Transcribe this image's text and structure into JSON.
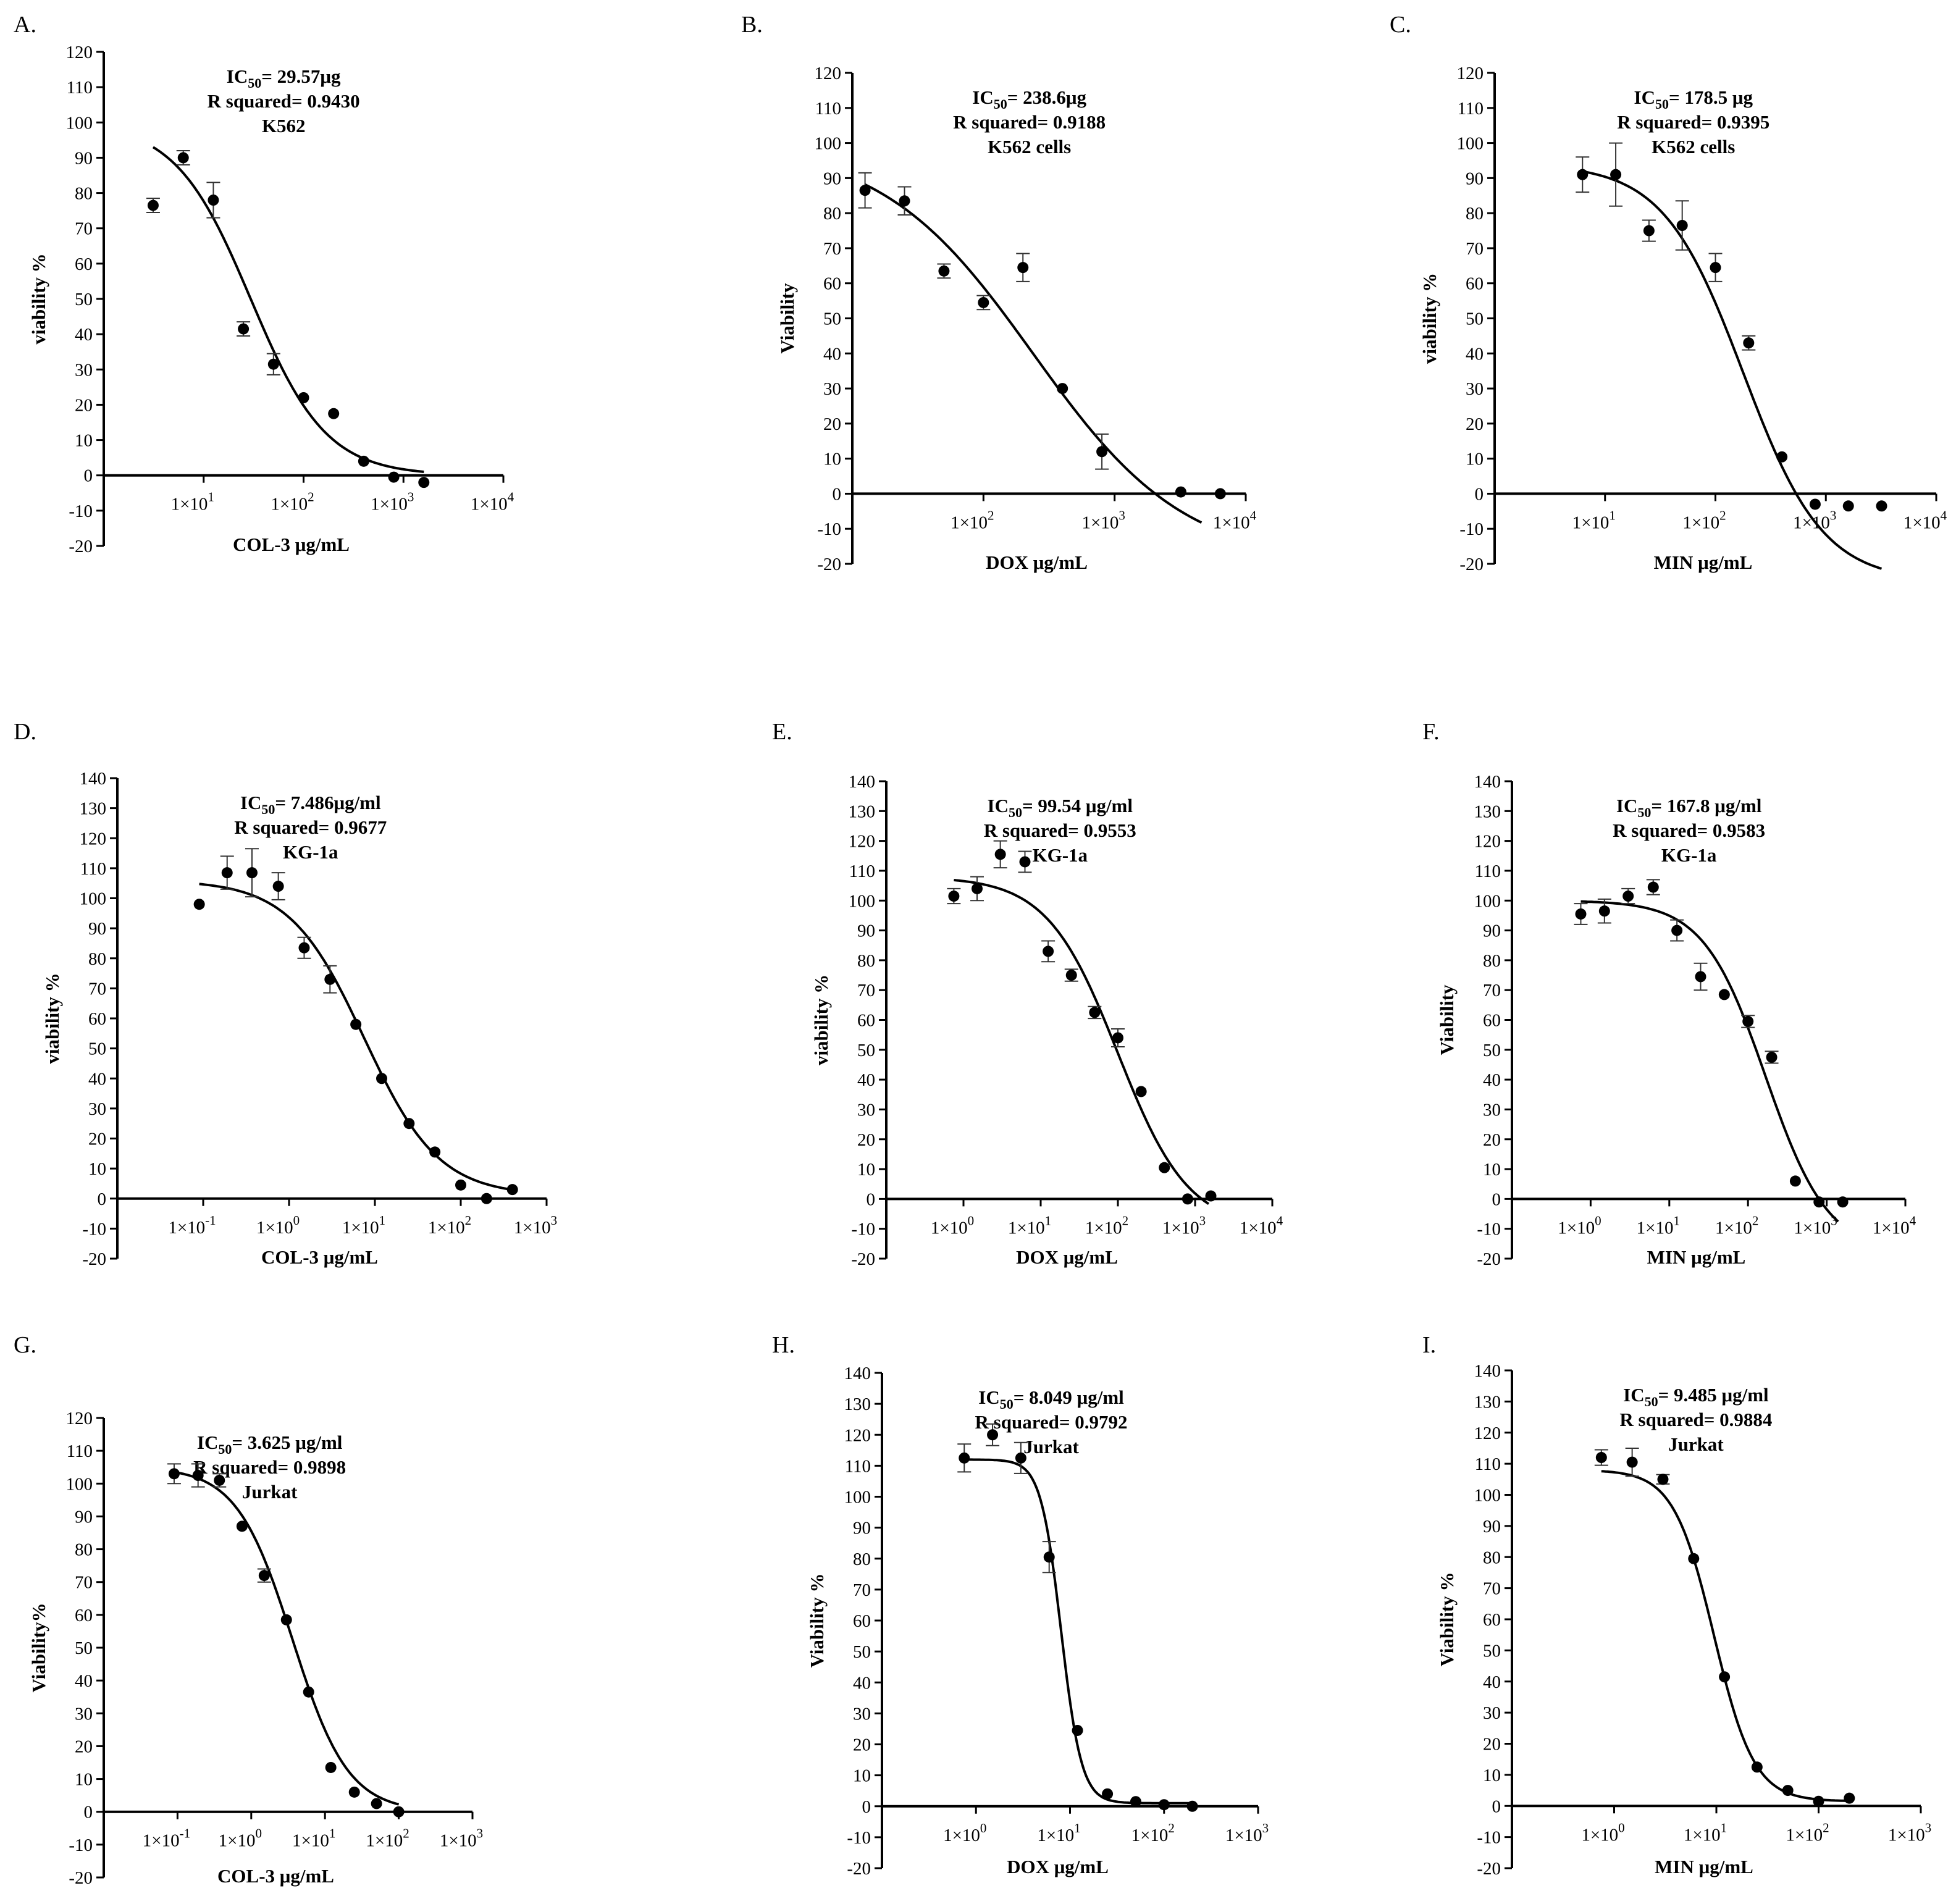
{
  "chart_data": [
    {
      "letter": "A.",
      "type": "scatter",
      "ylabel": "viability %",
      "xlabel": "COL-3 μg/mL",
      "annotation": {
        "ic50_prefix": "IC",
        "ic50_sub": "50",
        "ic50_value": "= 29.57μg",
        "r_squared": "R squared= 0.9430",
        "cell_line": "K562"
      },
      "x_scale": "log10",
      "xlim_log10": [
        0,
        4
      ],
      "x_ticks": [
        {
          "base": "1×10",
          "exp": "1",
          "log10": 1
        },
        {
          "base": "1×10",
          "exp": "2",
          "log10": 2
        },
        {
          "base": "1×10",
          "exp": "3",
          "log10": 3
        },
        {
          "base": "1×10",
          "exp": "4",
          "log10": 4
        }
      ],
      "ylim": [
        -20,
        120
      ],
      "y_ticks": [
        120,
        110,
        100,
        90,
        80,
        70,
        60,
        50,
        40,
        30,
        20,
        10,
        0,
        -10,
        -20
      ],
      "x": [
        3.12,
        6.25,
        12.5,
        25,
        50,
        100,
        200,
        400,
        800,
        1600
      ],
      "y": [
        76.5,
        90,
        78,
        41.5,
        31.5,
        22,
        17.5,
        4,
        -0.5,
        -2
      ],
      "error": [
        2,
        2,
        5,
        2,
        3,
        0,
        0,
        0,
        0,
        0
      ],
      "fit_4pl": {
        "top": 100,
        "bottom": 0,
        "ic50": 29.57,
        "hill": 1.15,
        "x_start": 3.12,
        "x_end": 1600
      }
    },
    {
      "letter": "B.",
      "type": "scatter",
      "ylabel": "Viability",
      "xlabel": "DOX μg/mL",
      "annotation": {
        "ic50_prefix": "IC",
        "ic50_sub": "50",
        "ic50_value": "= 238.6μg",
        "r_squared": "R squared= 0.9188",
        "cell_line": "K562 cells"
      },
      "x_scale": "log10",
      "xlim_log10": [
        1,
        4
      ],
      "x_ticks": [
        {
          "base": "1×10",
          "exp": "2",
          "log10": 2
        },
        {
          "base": "1×10",
          "exp": "3",
          "log10": 3
        },
        {
          "base": "1×10",
          "exp": "4",
          "log10": 4
        }
      ],
      "ylim": [
        -20,
        120
      ],
      "y_ticks": [
        120,
        110,
        100,
        90,
        80,
        70,
        60,
        50,
        40,
        30,
        20,
        10,
        0,
        -10,
        -20
      ],
      "x": [
        12.5,
        25,
        50,
        100,
        200,
        400,
        800,
        3200,
        6400
      ],
      "y": [
        86.5,
        83.5,
        63.5,
        54.5,
        64.5,
        30,
        12,
        0.5,
        0
      ],
      "error": [
        5,
        4,
        2,
        2,
        4,
        0,
        5,
        0,
        0
      ],
      "fit_4pl": {
        "top": 100,
        "bottom": -20,
        "ic50": 238.6,
        "hill": 0.75,
        "x_start": 12.5,
        "x_end": 4600
      }
    },
    {
      "letter": "C.",
      "type": "scatter",
      "ylabel": "viability %",
      "xlabel": "MIN μg/mL",
      "annotation": {
        "ic50_prefix": "IC",
        "ic50_sub": "50",
        "ic50_value": "= 178.5 μg",
        "r_squared": "R squared= 0.9395",
        "cell_line": "K562 cells"
      },
      "x_scale": "log10",
      "xlim_log10": [
        0,
        4
      ],
      "x_ticks": [
        {
          "base": "1×10",
          "exp": "1",
          "log10": 1
        },
        {
          "base": "1×10",
          "exp": "2",
          "log10": 2
        },
        {
          "base": "1×10",
          "exp": "3",
          "log10": 3
        },
        {
          "base": "1×10",
          "exp": "4",
          "log10": 4
        }
      ],
      "ylim": [
        -20,
        120
      ],
      "y_ticks": [
        120,
        110,
        100,
        90,
        80,
        70,
        60,
        50,
        40,
        30,
        20,
        10,
        0,
        -10,
        -20
      ],
      "x": [
        6.25,
        12.5,
        25,
        50,
        100,
        200,
        400,
        800,
        1600,
        3200
      ],
      "y": [
        91,
        91,
        75,
        76.5,
        64.5,
        43,
        10.5,
        -3,
        -3.5,
        -3.5
      ],
      "error": [
        5,
        9,
        3,
        7,
        4,
        2,
        0,
        0,
        0,
        0
      ],
      "fit_4pl": {
        "top": 94,
        "bottom": -25,
        "ic50": 178.5,
        "hill": 1.2,
        "x_start": 6.25,
        "x_end": 3200
      }
    },
    {
      "letter": "D.",
      "type": "scatter",
      "ylabel": "viability %",
      "xlabel": "COL-3 μg/mL",
      "annotation": {
        "ic50_prefix": "IC",
        "ic50_sub": "50",
        "ic50_value": "= 7.486μg/ml",
        "r_squared": "R squared= 0.9677",
        "cell_line": "KG-1a"
      },
      "x_scale": "log10",
      "xlim_log10": [
        -2,
        3
      ],
      "x_ticks": [
        {
          "base": "1×10",
          "exp": "-1",
          "log10": -1
        },
        {
          "base": "1×10",
          "exp": "0",
          "log10": 0
        },
        {
          "base": "1×10",
          "exp": "1",
          "log10": 1
        },
        {
          "base": "1×10",
          "exp": "2",
          "log10": 2
        },
        {
          "base": "1×10",
          "exp": "3",
          "log10": 3
        }
      ],
      "ylim": [
        -20,
        140
      ],
      "y_ticks": [
        140,
        130,
        120,
        110,
        100,
        90,
        80,
        70,
        60,
        50,
        40,
        30,
        20,
        10,
        0,
        -10,
        -20
      ],
      "x": [
        0.09,
        0.19,
        0.37,
        0.75,
        1.5,
        3,
        6,
        12,
        25,
        50,
        100,
        200,
        400
      ],
      "y": [
        98,
        108.5,
        108.5,
        104,
        83.5,
        73,
        58,
        40,
        25,
        15.5,
        4.5,
        0,
        3
      ],
      "error": [
        0,
        5.5,
        8,
        4.5,
        3.5,
        4.5,
        0,
        0,
        0,
        0,
        0,
        0,
        0
      ],
      "fit_4pl": {
        "top": 106,
        "bottom": 1,
        "ic50": 7.486,
        "hill": 1.0,
        "x_start": 0.09,
        "x_end": 400
      }
    },
    {
      "letter": "E.",
      "type": "scatter",
      "ylabel": "viability %",
      "xlabel": "DOX μg/mL",
      "annotation": {
        "ic50_prefix": "IC",
        "ic50_sub": "50",
        "ic50_value": "= 99.54 μg/ml",
        "r_squared": "R squared= 0.9553",
        "cell_line": "KG-1a"
      },
      "x_scale": "log10",
      "xlim_log10": [
        -1,
        4
      ],
      "x_ticks": [
        {
          "base": "1×10",
          "exp": "0",
          "log10": 0
        },
        {
          "base": "1×10",
          "exp": "1",
          "log10": 1
        },
        {
          "base": "1×10",
          "exp": "2",
          "log10": 2
        },
        {
          "base": "1×10",
          "exp": "3",
          "log10": 3
        },
        {
          "base": "1×10",
          "exp": "4",
          "log10": 4
        }
      ],
      "ylim": [
        -20,
        140
      ],
      "y_ticks": [
        140,
        130,
        120,
        110,
        100,
        90,
        80,
        70,
        60,
        50,
        40,
        30,
        20,
        10,
        0,
        -10,
        -20
      ],
      "x": [
        0.75,
        1.5,
        3,
        6.25,
        12.5,
        25,
        50,
        100,
        200,
        400,
        800,
        1600
      ],
      "y": [
        101.5,
        104,
        115.5,
        113,
        83,
        75,
        62.5,
        54,
        36,
        10.5,
        0,
        1
      ],
      "error": [
        2.5,
        4,
        4.5,
        3.5,
        3.5,
        2,
        2,
        3,
        0,
        0,
        0,
        0
      ],
      "fit_4pl": {
        "top": 108,
        "bottom": -10,
        "ic50": 99.54,
        "hill": 0.95,
        "x_start": 0.75,
        "x_end": 1500
      }
    },
    {
      "letter": "F.",
      "type": "scatter",
      "ylabel": "Viability",
      "xlabel": "MIN  μg/mL",
      "annotation": {
        "ic50_prefix": "IC",
        "ic50_sub": "50",
        "ic50_value": "= 167.8 μg/ml",
        "r_squared": "R squared= 0.9583",
        "cell_line": "KG-1a"
      },
      "x_scale": "log10",
      "xlim_log10": [
        -1,
        4
      ],
      "x_ticks": [
        {
          "base": "1×10",
          "exp": "0",
          "log10": 0
        },
        {
          "base": "1×10",
          "exp": "1",
          "log10": 1
        },
        {
          "base": "1×10",
          "exp": "2",
          "log10": 2
        },
        {
          "base": "1×10",
          "exp": "3",
          "log10": 3
        },
        {
          "base": "1×10",
          "exp": "4",
          "log10": 4
        }
      ],
      "ylim": [
        -20,
        140
      ],
      "y_ticks": [
        140,
        130,
        120,
        110,
        100,
        90,
        80,
        70,
        60,
        50,
        40,
        30,
        20,
        10,
        0,
        -10,
        -20
      ],
      "x": [
        0.75,
        1.5,
        3,
        6.25,
        12.5,
        25,
        50,
        100,
        200,
        400,
        800,
        1600
      ],
      "y": [
        95.5,
        96.5,
        101.5,
        104.5,
        90,
        74.5,
        68.5,
        59.5,
        47.5,
        6,
        -1,
        -1
      ],
      "error": [
        3.5,
        4,
        2.5,
        2.5,
        3.5,
        4.5,
        0,
        2,
        2,
        0,
        0,
        0
      ],
      "fit_4pl": {
        "top": 100,
        "bottom": -18,
        "ic50": 167.8,
        "hill": 1.1,
        "x_start": 0.75,
        "x_end": 1400
      }
    },
    {
      "letter": "G.",
      "type": "scatter",
      "ylabel": "Viability%",
      "xlabel": "COL-3 μg/mL",
      "annotation": {
        "ic50_prefix": "IC",
        "ic50_sub": "50",
        "ic50_value": "= 3.625 μg/ml",
        "r_squared": "R squared= 0.9898",
        "cell_line": "Jurkat"
      },
      "x_scale": "log10",
      "xlim_log10": [
        -2,
        3
      ],
      "x_ticks": [
        {
          "base": "1×10",
          "exp": "-1",
          "log10": -1
        },
        {
          "base": "1×10",
          "exp": "0",
          "log10": 0
        },
        {
          "base": "1×10",
          "exp": "1",
          "log10": 1
        },
        {
          "base": "1×10",
          "exp": "2",
          "log10": 2
        },
        {
          "base": "1×10",
          "exp": "3",
          "log10": 3
        }
      ],
      "ylim": [
        -20,
        120
      ],
      "y_ticks": [
        120,
        110,
        100,
        90,
        80,
        70,
        60,
        50,
        40,
        30,
        20,
        10,
        0,
        -10,
        -20
      ],
      "x": [
        0.09,
        0.19,
        0.37,
        0.75,
        1.5,
        3,
        6,
        12,
        25,
        50,
        100
      ],
      "y": [
        103,
        102.5,
        101,
        87,
        72,
        58.5,
        36.5,
        13.5,
        6,
        2.5,
        0
      ],
      "error": [
        3,
        3.5,
        2,
        0,
        2,
        0,
        0,
        0,
        0,
        0,
        0
      ],
      "fit_4pl": {
        "top": 105,
        "bottom": 0,
        "ic50": 3.625,
        "hill": 1.15,
        "x_start": 0.09,
        "x_end": 100
      }
    },
    {
      "letter": "H.",
      "type": "scatter",
      "ylabel": "Viability %",
      "xlabel": "DOX μg/mL",
      "annotation": {
        "ic50_prefix": "IC",
        "ic50_sub": "50",
        "ic50_value": "= 8.049 μg/ml",
        "r_squared": "R squared= 0.9792",
        "cell_line": "Jurkat"
      },
      "x_scale": "log10",
      "xlim_log10": [
        -1,
        3
      ],
      "x_ticks": [
        {
          "base": "1×10",
          "exp": "0",
          "log10": 0
        },
        {
          "base": "1×10",
          "exp": "1",
          "log10": 1
        },
        {
          "base": "1×10",
          "exp": "2",
          "log10": 2
        },
        {
          "base": "1×10",
          "exp": "3",
          "log10": 3
        }
      ],
      "ylim": [
        -20,
        140
      ],
      "y_ticks": [
        140,
        130,
        120,
        110,
        100,
        90,
        80,
        70,
        60,
        50,
        40,
        30,
        20,
        10,
        0,
        -10,
        -20
      ],
      "x": [
        0.75,
        1.5,
        3,
        6,
        12,
        25,
        50,
        100,
        200
      ],
      "y": [
        112.5,
        120,
        112.5,
        80.5,
        24.5,
        4,
        1.5,
        0.5,
        0
      ],
      "error": [
        4.5,
        3.5,
        5,
        5,
        0,
        0,
        0,
        0,
        0
      ],
      "fit_4pl": {
        "top": 112,
        "bottom": 1,
        "ic50": 8.049,
        "hill": 4.0,
        "x_start": 0.75,
        "x_end": 200
      }
    },
    {
      "letter": "I.",
      "type": "scatter",
      "ylabel": "Viability %",
      "xlabel": "MIN  μg/mL",
      "annotation": {
        "ic50_prefix": "IC",
        "ic50_sub": "50",
        "ic50_value": "= 9.485 μg/ml",
        "r_squared": "R squared= 0.9884",
        "cell_line": "Jurkat"
      },
      "x_scale": "log10",
      "xlim_log10": [
        -1,
        3
      ],
      "x_ticks": [
        {
          "base": "1×10",
          "exp": "0",
          "log10": 0
        },
        {
          "base": "1×10",
          "exp": "1",
          "log10": 1
        },
        {
          "base": "1×10",
          "exp": "2",
          "log10": 2
        },
        {
          "base": "1×10",
          "exp": "3",
          "log10": 3
        }
      ],
      "ylim": [
        -20,
        140
      ],
      "y_ticks": [
        140,
        130,
        120,
        110,
        100,
        90,
        80,
        70,
        60,
        50,
        40,
        30,
        20,
        10,
        0,
        -10,
        -20
      ],
      "x": [
        0.75,
        1.5,
        3,
        6,
        12,
        25,
        50,
        100,
        200
      ],
      "y": [
        112,
        110.5,
        105,
        79.5,
        41.5,
        12.5,
        5,
        1.5,
        2.5
      ],
      "error": [
        2.5,
        4.5,
        1.5,
        0,
        0,
        0,
        0,
        0,
        0
      ],
      "fit_4pl": {
        "top": 108,
        "bottom": 1.5,
        "ic50": 9.485,
        "hill": 2.2,
        "x_start": 0.75,
        "x_end": 200
      }
    }
  ]
}
